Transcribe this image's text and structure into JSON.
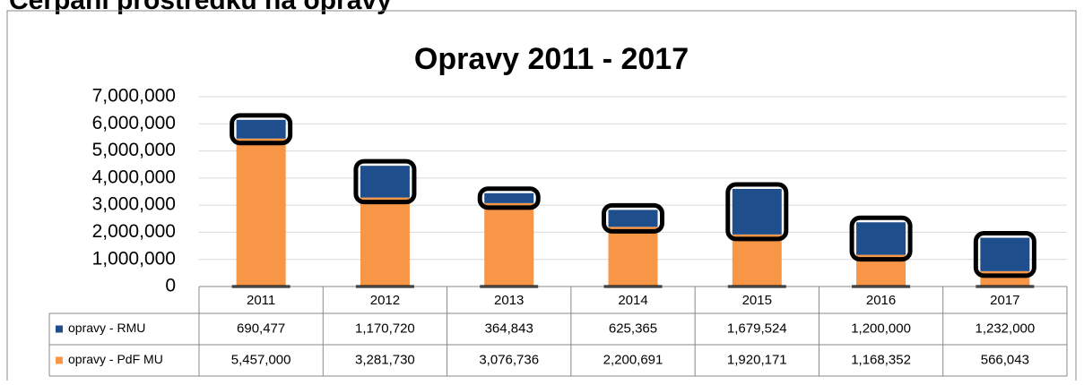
{
  "header": {
    "title": "Čerpání prostředků na opravy"
  },
  "chart_data": {
    "type": "bar",
    "stacked": true,
    "title": "Opravy 2011 - 2017",
    "categories": [
      "2011",
      "2012",
      "2013",
      "2014",
      "2015",
      "2016",
      "2017"
    ],
    "series": [
      {
        "name": "opravy - RMU",
        "color": "#1f4e8c",
        "values": [
          690477,
          1170720,
          364843,
          625365,
          1679524,
          1200000,
          1232000
        ],
        "value_labels": [
          "690,477",
          "1,170,720",
          "364,843",
          "625,365",
          "1,679,524",
          "1,200,000",
          "1,232,000"
        ]
      },
      {
        "name": "opravy - PdF MU",
        "color": "#f79646",
        "values": [
          5457000,
          3281730,
          3076736,
          2200691,
          1920171,
          1168352,
          566043
        ],
        "value_labels": [
          "5,457,000",
          "3,281,730",
          "3,076,736",
          "2,200,691",
          "1,920,171",
          "1,168,352",
          "566,043"
        ]
      }
    ],
    "ylim": [
      0,
      7000000
    ],
    "yticks": [
      0,
      {
        "value": 1000000,
        "label": "1,000,000"
      },
      {
        "value": 2000000,
        "label": "2,000,000"
      },
      {
        "value": 3000000,
        "label": "3,000,000"
      },
      {
        "value": 4000000,
        "label": "4,000,000"
      },
      {
        "value": 5000000,
        "label": "5,000,000"
      },
      {
        "value": 6000000,
        "label": "6,000,000"
      },
      {
        "value": 7000000,
        "label": "7,000,000"
      }
    ],
    "grid": true
  }
}
